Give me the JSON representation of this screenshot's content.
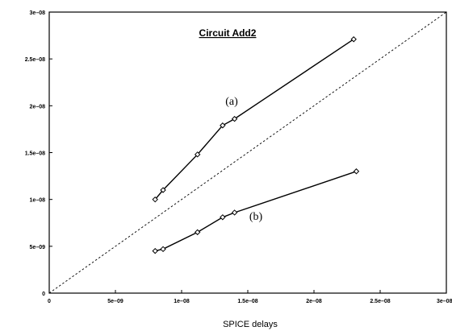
{
  "chart_data": {
    "type": "line",
    "title": "Circuit Add2",
    "xlabel": "SPICE delays",
    "ylabel": "",
    "xlim": [
      0,
      3e-08
    ],
    "ylim": [
      0,
      3e-08
    ],
    "grid": false,
    "x_ticks": [
      {
        "value": 0,
        "label": "0"
      },
      {
        "value": 5e-09,
        "label": "5e–09"
      },
      {
        "value": 1e-08,
        "label": "1e–08"
      },
      {
        "value": 1.5e-08,
        "label": "1.5e–08"
      },
      {
        "value": 2e-08,
        "label": "2e–08"
      },
      {
        "value": 2.5e-08,
        "label": "2.5e–08"
      },
      {
        "value": 3e-08,
        "label": "3e–08"
      }
    ],
    "y_ticks": [
      {
        "value": 0,
        "label": "0"
      },
      {
        "value": 5e-09,
        "label": "5e–09"
      },
      {
        "value": 1e-08,
        "label": "1e–08"
      },
      {
        "value": 1.5e-08,
        "label": "1.5e–08"
      },
      {
        "value": 2e-08,
        "label": "2e–08"
      },
      {
        "value": 2.5e-08,
        "label": "2.5e–08"
      },
      {
        "value": 3e-08,
        "label": "3e–08"
      }
    ],
    "series": [
      {
        "label": "(a)",
        "x": [
          8e-09,
          8.6e-09,
          1.12e-08,
          1.31e-08,
          1.4e-08,
          2.3e-08
        ],
        "y": [
          1e-08,
          1.1e-08,
          1.48e-08,
          1.79e-08,
          1.86e-08,
          2.71e-08
        ]
      },
      {
        "label": "(b)",
        "x": [
          8e-09,
          8.6e-09,
          1.12e-08,
          1.31e-08,
          1.4e-08,
          2.32e-08
        ],
        "y": [
          4.5e-09,
          4.7e-09,
          6.5e-09,
          8.1e-09,
          8.6e-09,
          1.3e-08
        ]
      }
    ],
    "reference_line": {
      "style": "dotted",
      "x": [
        0,
        3e-08
      ],
      "y": [
        0,
        3e-08
      ]
    }
  }
}
